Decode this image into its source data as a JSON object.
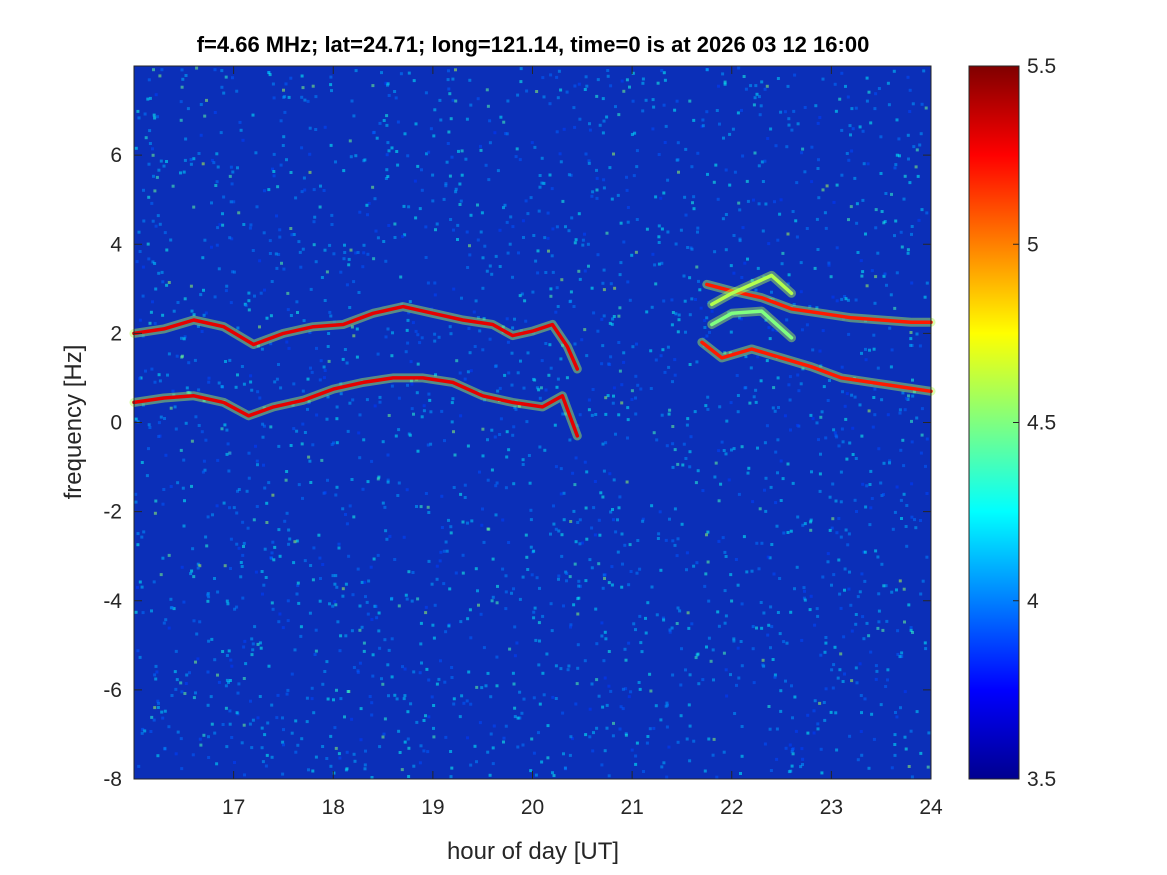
{
  "chart_data": {
    "type": "heatmap",
    "title": "f=4.66 MHz;  lat=24.71; long=121.14, time=0 is at 2026 03 12 16:00",
    "xlabel": "hour of day [UT]",
    "ylabel": "frequency [Hz]",
    "xlim": [
      16,
      24
    ],
    "ylim": [
      -8,
      8
    ],
    "xticks": [
      17,
      18,
      19,
      20,
      21,
      22,
      23,
      24
    ],
    "yticks": [
      -8,
      -6,
      -4,
      -2,
      0,
      2,
      4,
      6
    ],
    "colorbar": {
      "colormap": "jet",
      "clim": [
        3.5,
        5.5
      ],
      "ticks": [
        3.5,
        4,
        4.5,
        5,
        5.5
      ]
    },
    "series": [
      {
        "points": [
          [
            16.0,
            2.0
          ],
          [
            16.3,
            2.1
          ],
          [
            16.6,
            2.3
          ],
          [
            16.9,
            2.15
          ],
          [
            17.2,
            1.75
          ],
          [
            17.5,
            2.0
          ],
          [
            17.8,
            2.15
          ],
          [
            18.1,
            2.2
          ],
          [
            18.4,
            2.45
          ],
          [
            18.7,
            2.6
          ],
          [
            19.0,
            2.45
          ],
          [
            19.3,
            2.3
          ],
          [
            19.6,
            2.2
          ],
          [
            19.8,
            1.95
          ],
          [
            20.0,
            2.05
          ],
          [
            20.2,
            2.2
          ],
          [
            20.35,
            1.7
          ],
          [
            20.45,
            1.2
          ]
        ],
        "level": 5.3
      },
      {
        "points": [
          [
            16.0,
            0.45
          ],
          [
            16.3,
            0.55
          ],
          [
            16.6,
            0.6
          ],
          [
            16.9,
            0.45
          ],
          [
            17.15,
            0.15
          ],
          [
            17.4,
            0.35
          ],
          [
            17.7,
            0.5
          ],
          [
            18.0,
            0.75
          ],
          [
            18.3,
            0.9
          ],
          [
            18.6,
            1.0
          ],
          [
            18.9,
            1.0
          ],
          [
            19.2,
            0.9
          ],
          [
            19.5,
            0.6
          ],
          [
            19.8,
            0.45
          ],
          [
            20.1,
            0.35
          ],
          [
            20.3,
            0.6
          ],
          [
            20.45,
            -0.3
          ]
        ],
        "level": 5.3
      },
      {
        "points": [
          [
            21.75,
            3.1
          ],
          [
            22.0,
            2.95
          ],
          [
            22.3,
            2.8
          ],
          [
            22.6,
            2.55
          ],
          [
            22.9,
            2.45
          ],
          [
            23.2,
            2.35
          ],
          [
            23.5,
            2.3
          ],
          [
            23.8,
            2.25
          ],
          [
            24.0,
            2.25
          ]
        ],
        "level": 5.2
      },
      {
        "points": [
          [
            21.7,
            1.8
          ],
          [
            21.9,
            1.45
          ],
          [
            22.2,
            1.65
          ],
          [
            22.5,
            1.45
          ],
          [
            22.8,
            1.25
          ],
          [
            23.1,
            1.0
          ],
          [
            23.4,
            0.9
          ],
          [
            23.7,
            0.8
          ],
          [
            24.0,
            0.7
          ]
        ],
        "level": 5.2
      },
      {
        "points": [
          [
            21.8,
            2.65
          ],
          [
            22.0,
            2.9
          ],
          [
            22.2,
            3.1
          ],
          [
            22.4,
            3.3
          ],
          [
            22.6,
            2.9
          ]
        ],
        "level": 4.6
      },
      {
        "points": [
          [
            21.8,
            2.2
          ],
          [
            22.0,
            2.45
          ],
          [
            22.3,
            2.5
          ],
          [
            22.5,
            2.1
          ],
          [
            22.6,
            1.9
          ]
        ],
        "level": 4.5
      }
    ]
  }
}
